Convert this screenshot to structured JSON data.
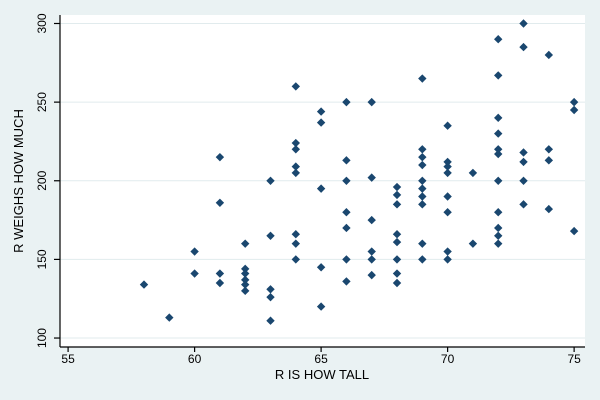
{
  "figure": {
    "background_color": "#eaf2f3",
    "plot_background_color": "#ffffff",
    "gridline_color": "#e1ebed",
    "marker_color": "#1a476f",
    "axis_color": "#000000"
  },
  "chart_data": {
    "type": "scatter",
    "title": "",
    "xlabel": "R IS HOW TALL",
    "ylabel": "R WEIGHS HOW MUCH",
    "x_ticks": [
      55,
      60,
      65,
      70,
      75
    ],
    "y_ticks": [
      100,
      150,
      200,
      250,
      300
    ],
    "xlim": [
      54.68,
      75.43
    ],
    "ylim": [
      94.3,
      305.4
    ],
    "grid": "horizontal",
    "legend": "none",
    "marker": "diamond",
    "points": [
      [
        58,
        134
      ],
      [
        59,
        113
      ],
      [
        60,
        155
      ],
      [
        60,
        141
      ],
      [
        61,
        215
      ],
      [
        61,
        186
      ],
      [
        61,
        141
      ],
      [
        61,
        135
      ],
      [
        62,
        160
      ],
      [
        62,
        144
      ],
      [
        62,
        141
      ],
      [
        62,
        137
      ],
      [
        62,
        134
      ],
      [
        62,
        130
      ],
      [
        63,
        200
      ],
      [
        63,
        165
      ],
      [
        63,
        131
      ],
      [
        63,
        126
      ],
      [
        63,
        111
      ],
      [
        64,
        260
      ],
      [
        64,
        224
      ],
      [
        64,
        220
      ],
      [
        64,
        209
      ],
      [
        64,
        205
      ],
      [
        64,
        166
      ],
      [
        64,
        160
      ],
      [
        64,
        150
      ],
      [
        65,
        244
      ],
      [
        65,
        237
      ],
      [
        65,
        195
      ],
      [
        65,
        145
      ],
      [
        65,
        120
      ],
      [
        66,
        250
      ],
      [
        66,
        213
      ],
      [
        66,
        200
      ],
      [
        66,
        180
      ],
      [
        66,
        170
      ],
      [
        66,
        150
      ],
      [
        66,
        136
      ],
      [
        67,
        250
      ],
      [
        67,
        202
      ],
      [
        67,
        175
      ],
      [
        67,
        155
      ],
      [
        67,
        150
      ],
      [
        67,
        140
      ],
      [
        68,
        196
      ],
      [
        68,
        191
      ],
      [
        68,
        185
      ],
      [
        68,
        166
      ],
      [
        68,
        161
      ],
      [
        68,
        150
      ],
      [
        68,
        141
      ],
      [
        68,
        135
      ],
      [
        69,
        265
      ],
      [
        69,
        220
      ],
      [
        69,
        215
      ],
      [
        69,
        210
      ],
      [
        69,
        200
      ],
      [
        69,
        195
      ],
      [
        69,
        190
      ],
      [
        69,
        185
      ],
      [
        69,
        160
      ],
      [
        69,
        150
      ],
      [
        70,
        235
      ],
      [
        70,
        212
      ],
      [
        70,
        209
      ],
      [
        70,
        205
      ],
      [
        70,
        190
      ],
      [
        70,
        180
      ],
      [
        70,
        155
      ],
      [
        70,
        150
      ],
      [
        71,
        205
      ],
      [
        71,
        160
      ],
      [
        72,
        290
      ],
      [
        72,
        267
      ],
      [
        72,
        240
      ],
      [
        72,
        230
      ],
      [
        72,
        220
      ],
      [
        72,
        217
      ],
      [
        72,
        200
      ],
      [
        72,
        180
      ],
      [
        72,
        170
      ],
      [
        72,
        165
      ],
      [
        72,
        160
      ],
      [
        73,
        300
      ],
      [
        73,
        285
      ],
      [
        73,
        218
      ],
      [
        73,
        212
      ],
      [
        73,
        200
      ],
      [
        73,
        185
      ],
      [
        74,
        280
      ],
      [
        74,
        220
      ],
      [
        74,
        213
      ],
      [
        74,
        182
      ],
      [
        75,
        250
      ],
      [
        75,
        245
      ],
      [
        75,
        168
      ]
    ]
  }
}
